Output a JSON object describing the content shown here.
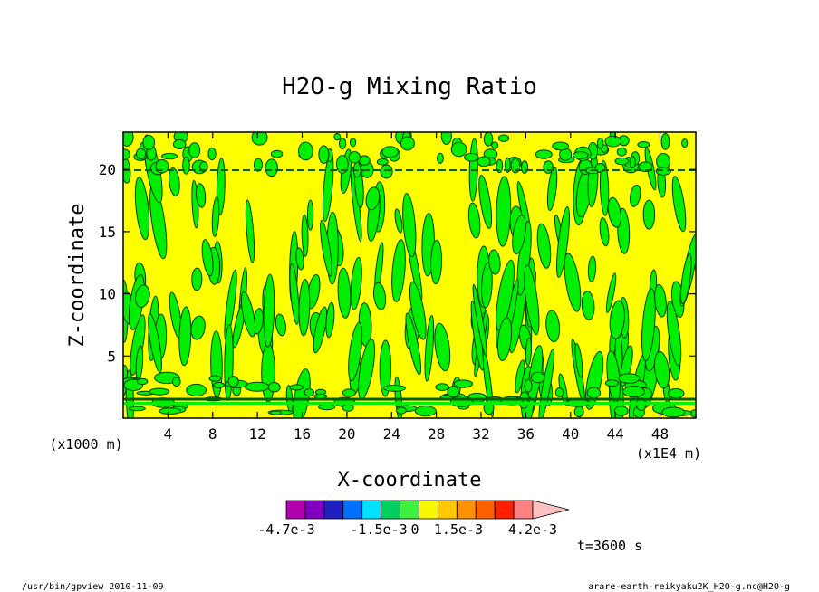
{
  "chart_data": {
    "type": "heatmap",
    "title": "H2O-g Mixing Ratio",
    "xlabel": "X-coordinate",
    "ylabel": "Z-coordinate",
    "x_unit": "(x1E4 m)",
    "y_unit": "(x1000 m)",
    "xlim": [
      0,
      51.2
    ],
    "ylim": [
      0,
      23
    ],
    "x_ticks": [
      4,
      8,
      12,
      16,
      20,
      24,
      28,
      32,
      36,
      40,
      44,
      48
    ],
    "y_ticks": [
      5,
      10,
      15,
      20
    ],
    "time_label": "t=3600 s",
    "colorbar": {
      "labels": [
        "-4.7e-3",
        "-1.5e-3",
        "0",
        "1.5e-3",
        "4.2e-3"
      ],
      "colors": [
        "#b000b0",
        "#8000c0",
        "#2020c0",
        "#0070ff",
        "#00e0ff",
        "#00d060",
        "#40f040",
        "#f8f800",
        "#ffc800",
        "#ff9000",
        "#ff6000",
        "#ff2000",
        "#ff8080",
        "#ffc0c0"
      ]
    },
    "field_colors": {
      "background": "#ffff00",
      "contour": "#00ee00"
    },
    "footer_left": "/usr/bin/gpview  2010-11-09",
    "footer_right": "arare-earth-reikyaku2K_H2O-g.nc@H2O-g"
  }
}
